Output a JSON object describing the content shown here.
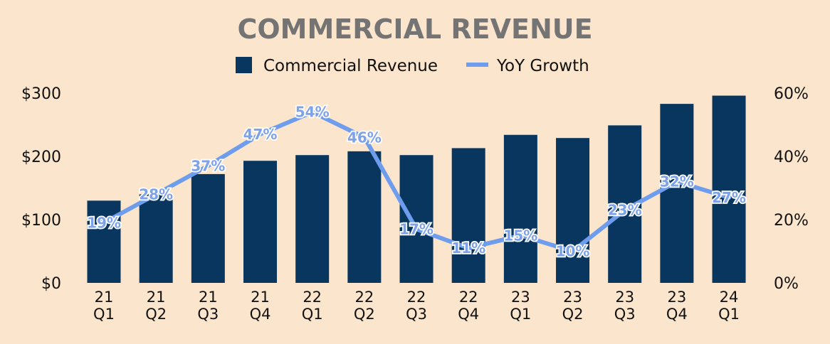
{
  "chart_data": {
    "type": "bar",
    "title": "COMMERCIAL REVENUE",
    "categories": [
      [
        "21",
        "Q1"
      ],
      [
        "21",
        "Q2"
      ],
      [
        "21",
        "Q3"
      ],
      [
        "21",
        "Q4"
      ],
      [
        "22",
        "Q1"
      ],
      [
        "22",
        "Q2"
      ],
      [
        "22",
        "Q3"
      ],
      [
        "22",
        "Q4"
      ],
      [
        "23",
        "Q1"
      ],
      [
        "23",
        "Q2"
      ],
      [
        "23",
        "Q3"
      ],
      [
        "23",
        "Q4"
      ],
      [
        "24",
        "Q1"
      ]
    ],
    "series": [
      {
        "name": "Commercial Revenue",
        "type": "bar",
        "axis": "left",
        "color": "#08365f",
        "values": [
          130,
          140,
          172,
          193,
          202,
          208,
          202,
          213,
          234,
          229,
          249,
          283,
          296
        ]
      },
      {
        "name": "YoY Growth",
        "type": "line",
        "axis": "right",
        "color": "#6e9ded",
        "values": [
          19,
          28,
          37,
          47,
          54,
          46,
          17,
          11,
          15,
          10,
          23,
          32,
          27
        ],
        "labels": [
          "19%",
          "28%",
          "37%",
          "47%",
          "54%",
          "46%",
          "17%",
          "11%",
          "15%",
          "10%",
          "23%",
          "32%",
          "27%"
        ]
      }
    ],
    "y_left": {
      "min": 0,
      "max": 300,
      "ticks": [
        0,
        100,
        200,
        300
      ],
      "tick_labels": [
        "$0",
        "$100",
        "$200",
        "$300"
      ]
    },
    "y_right": {
      "min": 0,
      "max": 60,
      "ticks": [
        0,
        20,
        40,
        60
      ],
      "tick_labels": [
        "0%",
        "20%",
        "40%",
        "60%"
      ]
    },
    "grid": false,
    "legend": "top-center"
  }
}
